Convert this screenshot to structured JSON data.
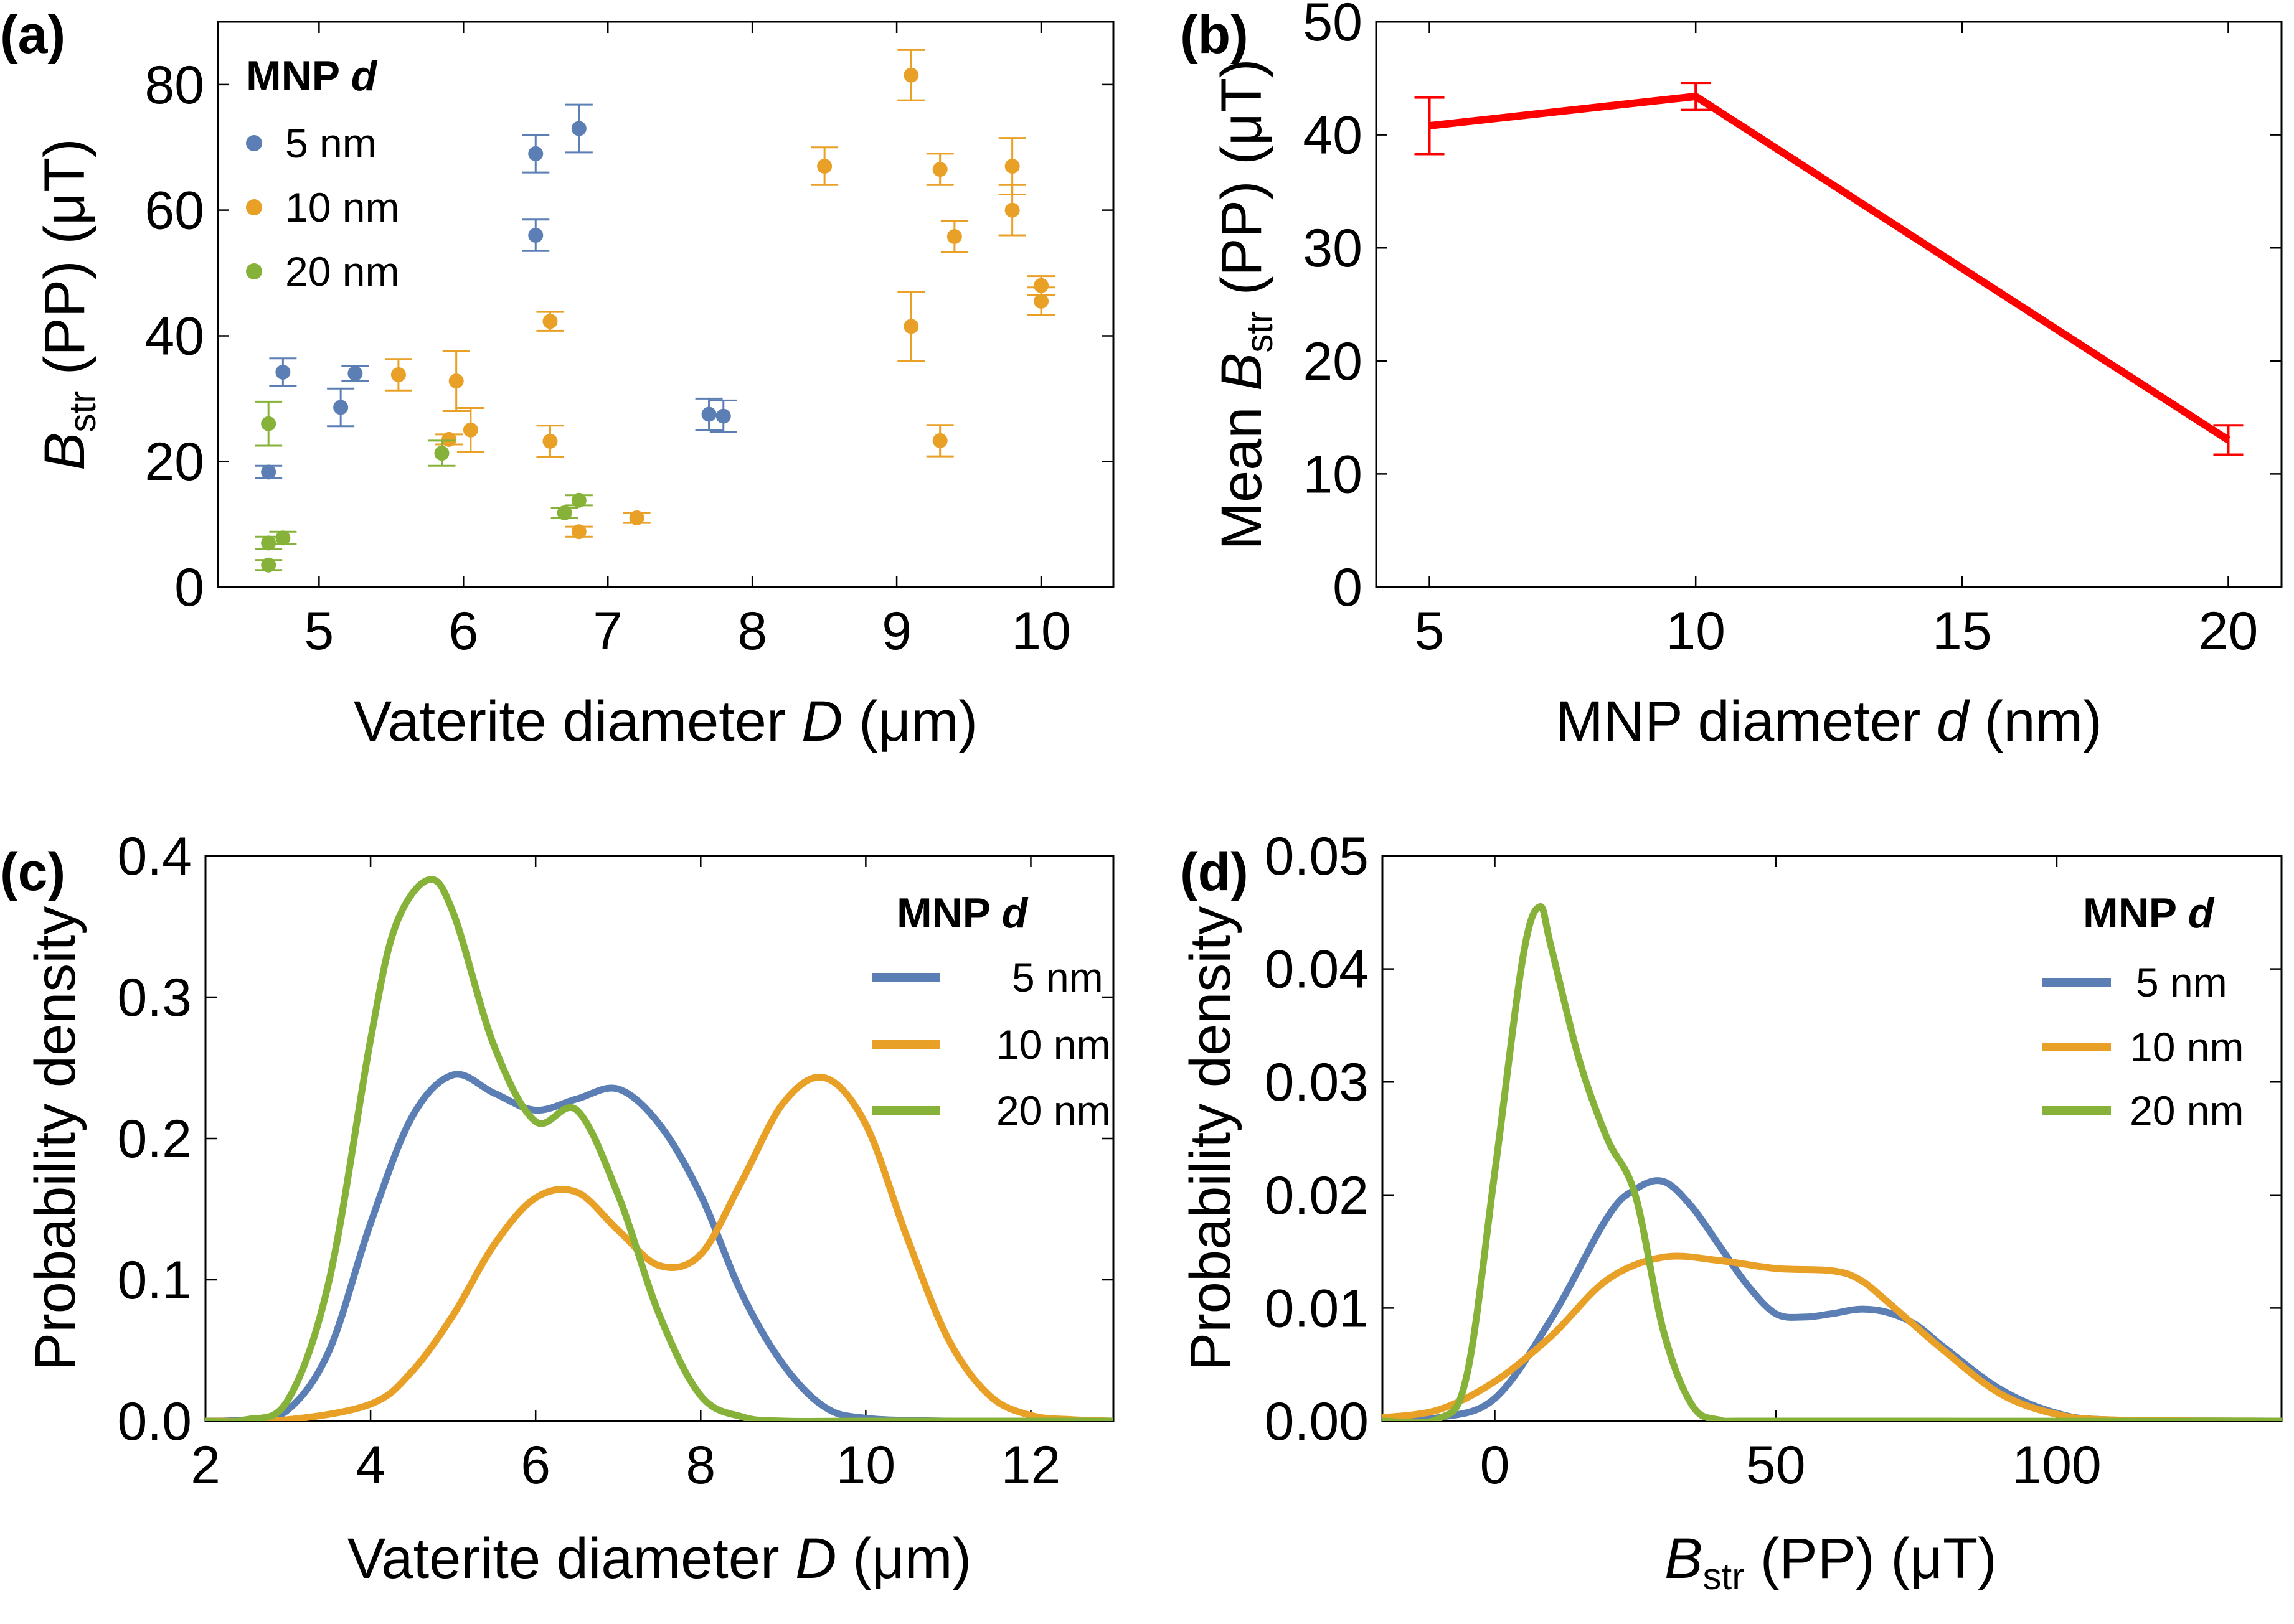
{
  "colors": {
    "blue": "#5b7fb5",
    "orange": "#e8a026",
    "green": "#87b23a",
    "red": "#ff0000"
  },
  "chart_data": [
    {
      "type": "scatter",
      "panel": "(a)",
      "xlabel_main": "Vaterite diameter ",
      "xlabel_var": "D",
      "xlabel_unit": " (μm)",
      "ylabel_var": "B",
      "ylabel_sub": "str",
      "ylabel_unit": " (PP) (μT)",
      "xlim": [
        4.3,
        10.5
      ],
      "ylim": [
        0,
        90
      ],
      "xticks": [
        5,
        6,
        7,
        8,
        9,
        10
      ],
      "yticks": [
        0,
        20,
        40,
        60,
        80
      ],
      "legend_title": "MNP d",
      "legend_title_main": "MNP ",
      "legend_title_var": "d",
      "series": [
        {
          "name": "5 nm",
          "color": "blue",
          "points": [
            {
              "x": 4.65,
              "y": 18.3,
              "err": 1.0
            },
            {
              "x": 4.75,
              "y": 34.2,
              "err": 2.2
            },
            {
              "x": 5.15,
              "y": 28.6,
              "err": 3.0
            },
            {
              "x": 5.25,
              "y": 34.0,
              "err": 1.2
            },
            {
              "x": 6.5,
              "y": 69.0,
              "err": 3.0
            },
            {
              "x": 6.5,
              "y": 56.0,
              "err": 2.5
            },
            {
              "x": 6.8,
              "y": 73.0,
              "err": 3.8
            },
            {
              "x": 7.7,
              "y": 27.5,
              "err": 2.5
            },
            {
              "x": 7.8,
              "y": 27.2,
              "err": 2.5
            }
          ]
        },
        {
          "name": "10 nm",
          "color": "orange",
          "points": [
            {
              "x": 5.55,
              "y": 33.8,
              "err": 2.5
            },
            {
              "x": 5.9,
              "y": 23.5,
              "err": 0.8
            },
            {
              "x": 5.95,
              "y": 32.8,
              "err": 4.8
            },
            {
              "x": 6.05,
              "y": 25.0,
              "err": 3.5
            },
            {
              "x": 6.6,
              "y": 42.3,
              "err": 1.5
            },
            {
              "x": 6.6,
              "y": 23.2,
              "err": 2.5
            },
            {
              "x": 6.8,
              "y": 8.8,
              "err": 0.8
            },
            {
              "x": 7.2,
              "y": 11.0,
              "err": 0.8
            },
            {
              "x": 8.5,
              "y": 67.0,
              "err": 3.0
            },
            {
              "x": 9.1,
              "y": 81.5,
              "err": 4.0
            },
            {
              "x": 9.1,
              "y": 41.5,
              "err": 5.5
            },
            {
              "x": 9.3,
              "y": 66.5,
              "err": 2.5
            },
            {
              "x": 9.3,
              "y": 23.3,
              "err": 2.5
            },
            {
              "x": 9.4,
              "y": 55.8,
              "err": 2.5
            },
            {
              "x": 9.8,
              "y": 67.0,
              "err": 4.5
            },
            {
              "x": 9.8,
              "y": 60.0,
              "err": 4.0
            },
            {
              "x": 10.0,
              "y": 48.0,
              "err": 1.5
            },
            {
              "x": 10.0,
              "y": 45.5,
              "err": 2.2
            }
          ]
        },
        {
          "name": "20 nm",
          "color": "green",
          "points": [
            {
              "x": 4.65,
              "y": 26.0,
              "err": 3.5
            },
            {
              "x": 4.65,
              "y": 7.0,
              "err": 1.0
            },
            {
              "x": 4.75,
              "y": 7.8,
              "err": 1.0
            },
            {
              "x": 4.65,
              "y": 3.5,
              "err": 0.8
            },
            {
              "x": 5.85,
              "y": 21.3,
              "err": 2.0
            },
            {
              "x": 6.7,
              "y": 11.8,
              "err": 0.8
            },
            {
              "x": 6.8,
              "y": 13.8,
              "err": 0.8
            }
          ]
        }
      ]
    },
    {
      "type": "line",
      "panel": "(b)",
      "xlabel_main": "MNP diameter ",
      "xlabel_var": "d",
      "xlabel_unit": " (nm)",
      "ylabel_prefix": "Mean ",
      "ylabel_var": "B",
      "ylabel_sub": "str",
      "ylabel_unit": " (PP) (μT)",
      "xlim": [
        4,
        21
      ],
      "ylim": [
        0,
        50
      ],
      "xticks": [
        5,
        10,
        15,
        20
      ],
      "yticks": [
        0,
        10,
        20,
        30,
        40,
        50
      ],
      "series": [
        {
          "name": "Mean",
          "color": "red",
          "x": [
            5,
            10,
            20
          ],
          "y": [
            40.8,
            43.4,
            13.0
          ],
          "err": [
            2.5,
            1.2,
            1.3
          ]
        }
      ]
    },
    {
      "type": "line",
      "panel": "(c)",
      "xlabel_main": "Vaterite diameter ",
      "xlabel_var": "D",
      "xlabel_unit": " (μm)",
      "ylabel": "Probability density",
      "xlim": [
        2,
        13
      ],
      "ylim": [
        0,
        0.4
      ],
      "xticks": [
        2,
        4,
        6,
        8,
        10,
        12
      ],
      "ytick_labels": [
        "0.0",
        "0.1",
        "0.2",
        "0.3",
        "0.4"
      ],
      "yticks": [
        0,
        0.1,
        0.2,
        0.3,
        0.4
      ],
      "legend_title": "MNP d",
      "legend_title_main": "MNP ",
      "legend_title_var": "d",
      "series": [
        {
          "name": "5 nm",
          "color": "blue",
          "x": [
            2,
            2.5,
            3,
            3.5,
            4,
            4.5,
            5,
            5.5,
            6,
            6.5,
            7,
            7.5,
            8,
            8.5,
            9,
            9.5,
            10,
            11,
            12,
            13
          ],
          "y": [
            0,
            0.001,
            0.008,
            0.05,
            0.14,
            0.215,
            0.245,
            0.232,
            0.22,
            0.228,
            0.235,
            0.21,
            0.16,
            0.09,
            0.04,
            0.01,
            0.002,
            0,
            0,
            0
          ]
        },
        {
          "name": "10 nm",
          "color": "orange",
          "x": [
            2,
            3,
            4,
            4.5,
            5,
            5.5,
            6,
            6.5,
            7,
            7.5,
            8,
            8.5,
            9,
            9.5,
            10,
            10.5,
            11,
            11.5,
            12,
            12.5,
            13
          ],
          "y": [
            0,
            0.001,
            0.012,
            0.035,
            0.075,
            0.125,
            0.158,
            0.162,
            0.135,
            0.11,
            0.118,
            0.17,
            0.225,
            0.243,
            0.21,
            0.13,
            0.058,
            0.018,
            0.004,
            0.001,
            0
          ]
        },
        {
          "name": "20 nm",
          "color": "green",
          "x": [
            2,
            2.5,
            3,
            3.5,
            4,
            4.3,
            4.7,
            5,
            5.5,
            6,
            6.5,
            7,
            7.5,
            8,
            8.5,
            9,
            10,
            13
          ],
          "y": [
            0,
            0.001,
            0.015,
            0.1,
            0.27,
            0.35,
            0.383,
            0.36,
            0.265,
            0.212,
            0.22,
            0.16,
            0.075,
            0.018,
            0.003,
            0,
            0,
            0
          ]
        }
      ]
    },
    {
      "type": "line",
      "panel": "(d)",
      "xlabel_var": "B",
      "xlabel_sub": "str",
      "xlabel_unit": " (PP) (μT)",
      "ylabel": "Probability density",
      "xlim": [
        -20,
        140
      ],
      "ylim": [
        0,
        0.05
      ],
      "xticks": [
        0,
        50,
        100
      ],
      "ytick_labels": [
        "0.00",
        "0.01",
        "0.02",
        "0.03",
        "0.04",
        "0.05"
      ],
      "yticks": [
        0,
        0.01,
        0.02,
        0.03,
        0.04,
        0.05
      ],
      "legend_title": "MNP d",
      "legend_title_main": "MNP ",
      "legend_title_var": "d",
      "series": [
        {
          "name": "5 nm",
          "color": "blue",
          "x": [
            -20,
            -10,
            0,
            10,
            20,
            25,
            30,
            35,
            40,
            45,
            50,
            55,
            60,
            65,
            70,
            75,
            80,
            90,
            100,
            110,
            140
          ],
          "y": [
            0,
            0.0003,
            0.002,
            0.009,
            0.018,
            0.0205,
            0.0212,
            0.019,
            0.0155,
            0.012,
            0.0095,
            0.0092,
            0.0095,
            0.0099,
            0.0096,
            0.0085,
            0.0065,
            0.0028,
            0.0007,
            0.0001,
            0
          ]
        },
        {
          "name": "10 nm",
          "color": "orange",
          "x": [
            -20,
            -10,
            0,
            10,
            20,
            30,
            40,
            50,
            60,
            65,
            70,
            80,
            90,
            100,
            110,
            140
          ],
          "y": [
            0.0003,
            0.001,
            0.0035,
            0.0075,
            0.0125,
            0.0145,
            0.0142,
            0.0135,
            0.0133,
            0.0125,
            0.0105,
            0.0062,
            0.0024,
            0.0006,
            0.0001,
            0
          ]
        },
        {
          "name": "20 nm",
          "color": "green",
          "x": [
            -20,
            -10,
            -5,
            0,
            5,
            8,
            10,
            15,
            20,
            25,
            30,
            35,
            40,
            50,
            140
          ],
          "y": [
            0,
            0.0002,
            0.004,
            0.022,
            0.041,
            0.0455,
            0.042,
            0.032,
            0.025,
            0.02,
            0.008,
            0.0015,
            0.0001,
            0,
            0
          ]
        }
      ]
    }
  ]
}
